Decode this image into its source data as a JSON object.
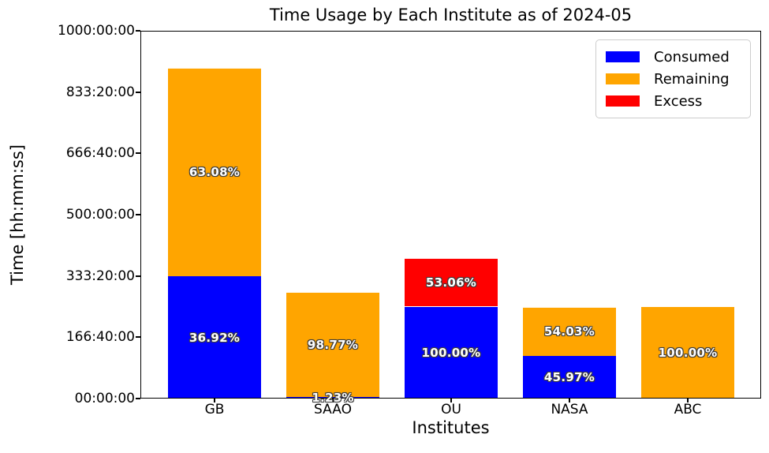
{
  "figure": {
    "title": "Time Usage by Each Institute as of 2024-05",
    "xlabel": "Institutes",
    "ylabel": "Time [hh:mm:ss]"
  },
  "legend": {
    "items": [
      {
        "label": "Consumed",
        "color": "#0000ff"
      },
      {
        "label": "Remaining",
        "color": "#ffa500"
      },
      {
        "label": "Excess",
        "color": "#ff0000"
      }
    ]
  },
  "chart_data": {
    "type": "bar",
    "stacked": true,
    "title": "Time Usage by Each Institute as of 2024-05",
    "xlabel": "Institutes",
    "ylabel": "Time [hh:mm:ss]",
    "categories": [
      "GB",
      "SAAO",
      "OU",
      "NASA",
      "ABC"
    ],
    "unit": "hours",
    "ylim_hours": [
      0,
      1000
    ],
    "ytick_hours": [
      0,
      166.6667,
      333.3333,
      500,
      666.6667,
      833.3333,
      1000
    ],
    "ytick_labels": [
      "00:00:00",
      "166:40:00",
      "333:20:00",
      "500:00:00",
      "666:40:00",
      "833:20:00",
      "1000:00:00"
    ],
    "grid": false,
    "legend_position": "upper right",
    "allocated_hours": [
      900,
      290,
      250,
      250,
      250
    ],
    "series": [
      {
        "name": "Consumed",
        "color": "#0000ff",
        "values_hours": [
          332.3,
          3.6,
          250,
          114.9,
          0
        ],
        "percent_labels": [
          "36.92%",
          "1.23%",
          "100.00%",
          "45.97%",
          ""
        ]
      },
      {
        "name": "Remaining",
        "color": "#ffa500",
        "values_hours": [
          567.7,
          286.4,
          0,
          135.1,
          250
        ],
        "percent_labels": [
          "63.08%",
          "98.77%",
          "",
          "54.03%",
          "100.00%"
        ]
      },
      {
        "name": "Excess",
        "color": "#ff0000",
        "values_hours": [
          0,
          0,
          132.7,
          0,
          0
        ],
        "percent_labels": [
          "",
          "",
          "53.06%",
          "",
          ""
        ]
      }
    ]
  }
}
